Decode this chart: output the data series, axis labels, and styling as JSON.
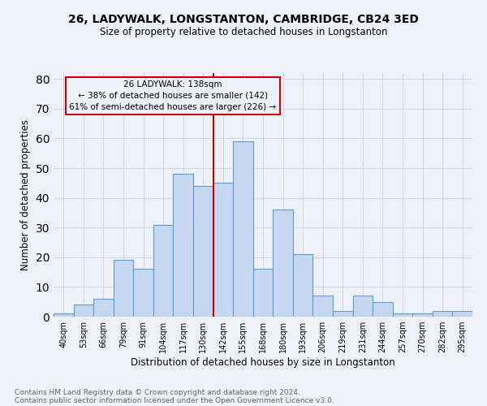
{
  "title": "26, LADYWALK, LONGSTANTON, CAMBRIDGE, CB24 3ED",
  "subtitle": "Size of property relative to detached houses in Longstanton",
  "xlabel": "Distribution of detached houses by size in Longstanton",
  "ylabel": "Number of detached properties",
  "footnote1": "Contains HM Land Registry data © Crown copyright and database right 2024.",
  "footnote2": "Contains public sector information licensed under the Open Government Licence v3.0.",
  "categories": [
    "40sqm",
    "53sqm",
    "66sqm",
    "79sqm",
    "91sqm",
    "104sqm",
    "117sqm",
    "130sqm",
    "142sqm",
    "155sqm",
    "168sqm",
    "180sqm",
    "193sqm",
    "206sqm",
    "219sqm",
    "231sqm",
    "244sqm",
    "257sqm",
    "270sqm",
    "282sqm",
    "295sqm"
  ],
  "values": [
    1,
    4,
    6,
    19,
    16,
    31,
    48,
    44,
    45,
    59,
    16,
    36,
    21,
    7,
    2,
    7,
    5,
    1,
    1,
    2,
    2
  ],
  "bar_color": "#c5d8f0",
  "bar_edge_color": "#5b9bd5",
  "grid_color": "#d0d8e8",
  "background_color": "#eef2f8",
  "annotation_line1": "26 LADYWALK: 138sqm",
  "annotation_line2": "← 38% of detached houses are smaller (142)",
  "annotation_line3": "61% of semi-detached houses are larger (226) →",
  "vline_color": "#cc0000",
  "box_color": "#cc0000",
  "ylim": [
    0,
    82
  ],
  "yticks": [
    0,
    10,
    20,
    30,
    40,
    50,
    60,
    70,
    80
  ],
  "title_fontsize": 10,
  "subtitle_fontsize": 8.5,
  "ylabel_fontsize": 8.5,
  "xlabel_fontsize": 8.5,
  "tick_fontsize": 7,
  "annotation_fontsize": 7.5,
  "footnote_fontsize": 6.5
}
